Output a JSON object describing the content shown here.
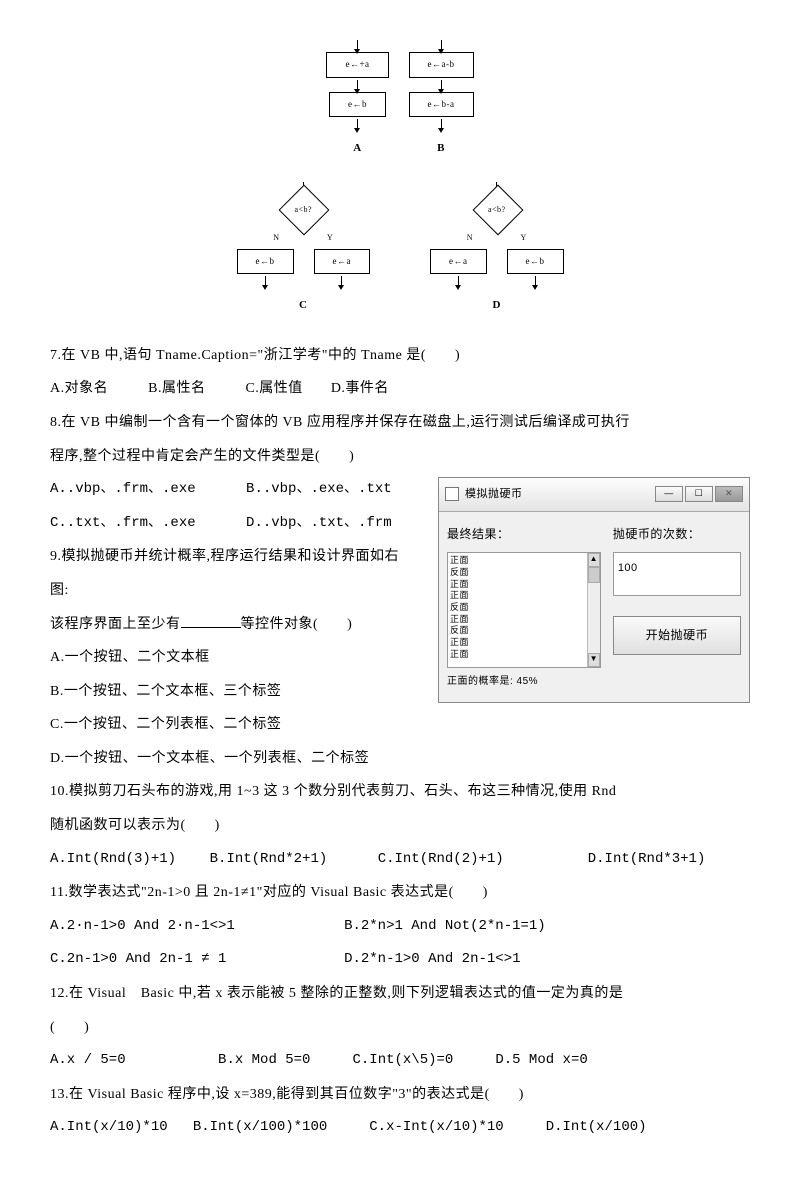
{
  "flowcharts": {
    "A": {
      "box1": "e←+a",
      "box2": "e←b"
    },
    "B": {
      "box1": "e←a-b",
      "box2": "e←b-a"
    },
    "C": {
      "diamond": "a<b?",
      "N": "N",
      "Y": "Y",
      "left": "e←b",
      "right": "e←a"
    },
    "D": {
      "diamond": "a<b?",
      "N": "N",
      "Y": "Y",
      "left": "e←a",
      "right": "e←b"
    }
  },
  "q7": {
    "text": "7.在 VB 中,语句 Tname.Caption=\"浙江学考\"中的 Tname 是(　　)",
    "a": "A.对象名",
    "b": "B.属性名",
    "c": "C.属性值",
    "d": "D.事件名"
  },
  "q8": {
    "text": "8.在 VB 中编制一个含有一个窗体的 VB 应用程序并保存在磁盘上,运行测试后编译成可执行",
    "text2": "程序,整个过程中肯定会产生的文件类型是(　　)",
    "a": "A..vbp、.frm、.exe",
    "b": "B..vbp、.exe、.txt",
    "c": "C..txt、.frm、.exe",
    "d": "D..vbp、.txt、.frm"
  },
  "q9": {
    "line1": "9.模拟抛硬币并统计概率,程序运行结果和设计界面如右",
    "line2": "图:",
    "line3_pre": "该程序界面上至少有",
    "line3_post": "等控件对象(　　)",
    "a": "A.一个按钮、二个文本框",
    "b": "B.一个按钮、二个文本框、三个标签",
    "c": "C.一个按钮、二个列表框、二个标签",
    "d": "D.一个按钮、一个文本框、一个列表框、二个标签"
  },
  "window": {
    "title": "模拟抛硬币",
    "label_result": "最终结果：",
    "label_count": "抛硬币的次数：",
    "textbox_value": "100",
    "button_label": "开始抛硬币",
    "footer": "正面的概率是: 45%"
  },
  "q10": {
    "text": "10.模拟剪刀石头布的游戏,用 1~3 这 3 个数分别代表剪刀、石头、布这三种情况,使用 Rnd",
    "text2": "随机函数可以表示为(　　)",
    "a": "A.Int(Rnd(3)+1)",
    "b": "B.Int(Rnd*2+1)",
    "c": "C.Int(Rnd(2)+1)",
    "d": "D.Int(Rnd*3+1)"
  },
  "q11": {
    "text": "11.数学表达式\"2n-1>0 且 2n-1≠1\"对应的 Visual Basic 表达式是(　　)",
    "a": "A.2·n-1>0 And 2·n-1<>1",
    "b": "B.2*n>1 And Not(2*n-1=1)",
    "c": "C.2n-1>0 And 2n-1 ≠ 1",
    "d": "D.2*n-1>0 And 2n-1<>1"
  },
  "q12": {
    "text": "12.在 Visual　Basic 中,若 x 表示能被 5 整除的正整数,则下列逻辑表达式的值一定为真的是",
    "text2": "(　　)",
    "a": "A.x / 5=0",
    "b": "B.x Mod 5=0",
    "c": "C.Int(x\\5)=0",
    "d": "D.5 Mod x=0"
  },
  "q13": {
    "text": "13.在 Visual Basic 程序中,设 x=389,能得到其百位数字\"3\"的表达式是(　　)",
    "a": "A.Int(x/10)*10",
    "b": "B.Int(x/100)*100",
    "c": "C.x-Int(x/10)*10",
    "d": "D.Int(x/100)"
  }
}
